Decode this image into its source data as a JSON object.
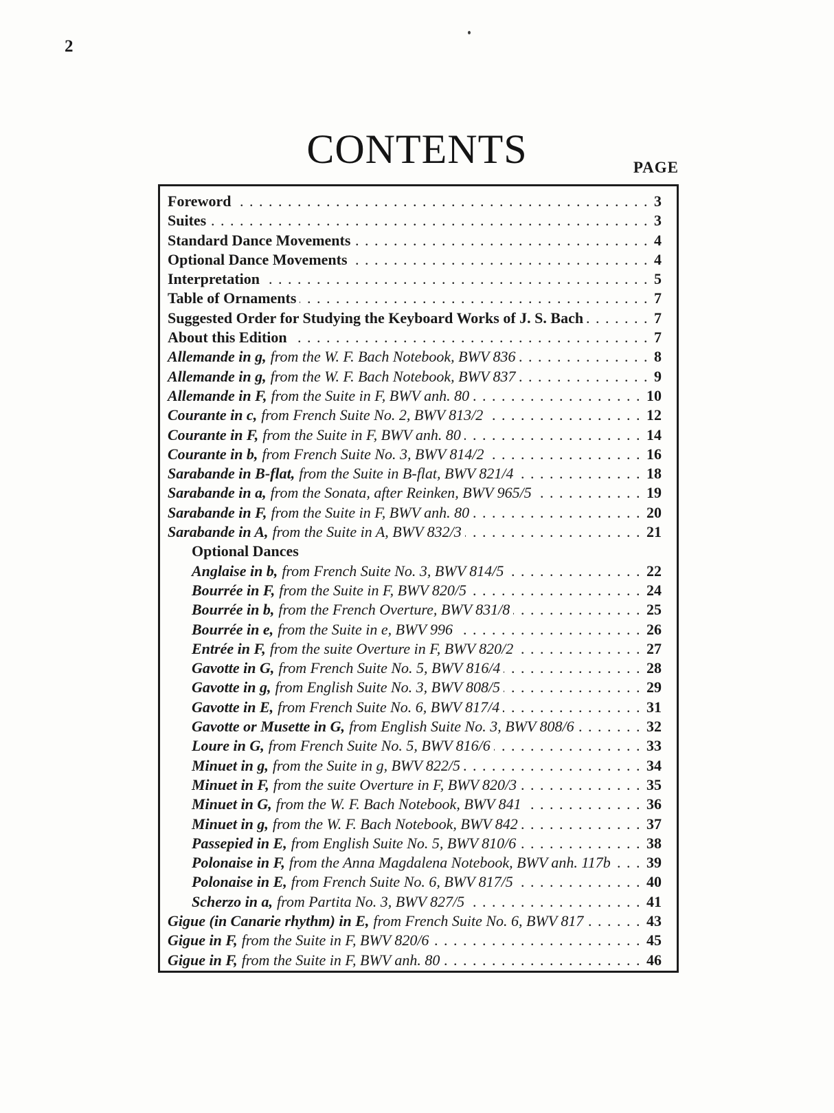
{
  "colors": {
    "ink": "#191919",
    "background": "#fdfdfb",
    "border": "#1c1c1c"
  },
  "header": {
    "corner_page_number": "2",
    "title": "CONTENTS",
    "page_column_label": "PAGE"
  },
  "toc": {
    "entries": [
      {
        "kind": "front",
        "indent": 0,
        "name": "Foreword",
        "page": "3"
      },
      {
        "kind": "front",
        "indent": 0,
        "name": "Suites",
        "page": "3"
      },
      {
        "kind": "front",
        "indent": 0,
        "name": "Standard Dance Movements",
        "page": "4"
      },
      {
        "kind": "front",
        "indent": 0,
        "name": "Optional Dance Movements",
        "page": "4"
      },
      {
        "kind": "front",
        "indent": 0,
        "name": "Interpretation",
        "page": "5"
      },
      {
        "kind": "front",
        "indent": 0,
        "name": "Table of Ornaments",
        "page": "7"
      },
      {
        "kind": "front",
        "indent": 0,
        "name": "Suggested Order for Studying the Keyboard Works of J. S. Bach",
        "page": "7"
      },
      {
        "kind": "front",
        "indent": 0,
        "name": "About this Edition",
        "page": "7"
      },
      {
        "kind": "piece",
        "indent": 0,
        "name": "Allemande in g,",
        "desc": "from the W. F. Bach Notebook, BWV 836",
        "page": "8"
      },
      {
        "kind": "piece",
        "indent": 0,
        "name": "Allemande in g,",
        "desc": "from the W. F. Bach Notebook, BWV 837",
        "page": "9"
      },
      {
        "kind": "piece",
        "indent": 0,
        "name": "Allemande in F,",
        "desc": "from the Suite in F, BWV anh. 80",
        "page": "10"
      },
      {
        "kind": "piece",
        "indent": 0,
        "name": "Courante in c,",
        "desc": "from French Suite No. 2, BWV 813/2",
        "page": "12"
      },
      {
        "kind": "piece",
        "indent": 0,
        "name": "Courante in F,",
        "desc": "from the Suite in F, BWV anh. 80",
        "page": "14"
      },
      {
        "kind": "piece",
        "indent": 0,
        "name": "Courante in b,",
        "desc": "from French Suite No. 3, BWV 814/2",
        "page": "16"
      },
      {
        "kind": "piece",
        "indent": 0,
        "name": "Sarabande in B-flat,",
        "desc": "from the Suite in B-flat, BWV 821/4",
        "page": "18"
      },
      {
        "kind": "piece",
        "indent": 0,
        "name": "Sarabande in a,",
        "desc": "from the Sonata, after Reinken, BWV 965/5",
        "page": "19"
      },
      {
        "kind": "piece",
        "indent": 0,
        "name": "Sarabande in F,",
        "desc": "from the Suite in F, BWV anh. 80",
        "page": "20"
      },
      {
        "kind": "piece",
        "indent": 0,
        "name": "Sarabande in A,",
        "desc": "from the Suite in A, BWV 832/3",
        "page": "21"
      },
      {
        "kind": "heading",
        "indent": 1,
        "name": "Optional Dances"
      },
      {
        "kind": "piece",
        "indent": 1,
        "name": "Anglaise in b,",
        "desc": "from French Suite No. 3, BWV 814/5",
        "page": "22"
      },
      {
        "kind": "piece",
        "indent": 1,
        "name": "Bourrée in F,",
        "desc": "from the Suite in F, BWV 820/5",
        "page": "24"
      },
      {
        "kind": "piece",
        "indent": 1,
        "name": "Bourrée in b,",
        "desc": "from the French Overture, BWV 831/8",
        "page": "25"
      },
      {
        "kind": "piece",
        "indent": 1,
        "name": "Bourrée in e,",
        "desc": "from the Suite in e, BWV 996",
        "page": "26"
      },
      {
        "kind": "piece",
        "indent": 1,
        "name": "Entrée in F,",
        "desc": "from the suite Overture in F, BWV 820/2",
        "page": "27"
      },
      {
        "kind": "piece",
        "indent": 1,
        "name": "Gavotte in G,",
        "desc": "from French Suite No. 5, BWV 816/4",
        "page": "28"
      },
      {
        "kind": "piece",
        "indent": 1,
        "name": "Gavotte in g,",
        "desc": "from English Suite No. 3, BWV 808/5",
        "page": "29"
      },
      {
        "kind": "piece",
        "indent": 1,
        "name": "Gavotte in E,",
        "desc": "from French Suite No. 6, BWV 817/4",
        "page": "31"
      },
      {
        "kind": "piece",
        "indent": 1,
        "name": "Gavotte or Musette in G,",
        "desc": "from English Suite No. 3, BWV 808/6",
        "page": "32"
      },
      {
        "kind": "piece",
        "indent": 1,
        "name": "Loure in G,",
        "desc": "from French Suite No. 5, BWV 816/6",
        "page": "33"
      },
      {
        "kind": "piece",
        "indent": 1,
        "name": "Minuet in g,",
        "desc": "from the Suite in g, BWV 822/5",
        "page": "34"
      },
      {
        "kind": "piece",
        "indent": 1,
        "name": "Minuet in F,",
        "desc": "from the suite Overture in F, BWV 820/3",
        "page": "35"
      },
      {
        "kind": "piece",
        "indent": 1,
        "name": "Minuet in G,",
        "desc": "from the W. F. Bach Notebook, BWV 841",
        "page": "36"
      },
      {
        "kind": "piece",
        "indent": 1,
        "name": "Minuet in g,",
        "desc": "from the W. F. Bach Notebook, BWV 842",
        "page": "37"
      },
      {
        "kind": "piece",
        "indent": 1,
        "name": "Passepied in E,",
        "desc": "from English Suite No. 5, BWV 810/6",
        "page": "38"
      },
      {
        "kind": "piece",
        "indent": 1,
        "name": "Polonaise in F,",
        "desc": "from the Anna Magdalena Notebook, BWV anh. 117b",
        "page": "39"
      },
      {
        "kind": "piece",
        "indent": 1,
        "name": "Polonaise in E,",
        "desc": "from French Suite No. 6, BWV 817/5",
        "page": "40"
      },
      {
        "kind": "piece",
        "indent": 1,
        "name": "Scherzo in a,",
        "desc": "from Partita No. 3, BWV 827/5",
        "page": "41"
      },
      {
        "kind": "piece",
        "indent": 0,
        "name": "Gigue (in Canarie rhythm) in E,",
        "desc": "from French Suite No. 6, BWV 817",
        "page": "43"
      },
      {
        "kind": "piece",
        "indent": 0,
        "name": "Gigue in F,",
        "desc": "from the Suite in F, BWV 820/6",
        "page": "45"
      },
      {
        "kind": "piece",
        "indent": 0,
        "name": "Gigue in F,",
        "desc": "from the Suite in F, BWV anh. 80",
        "page": "46"
      }
    ]
  }
}
